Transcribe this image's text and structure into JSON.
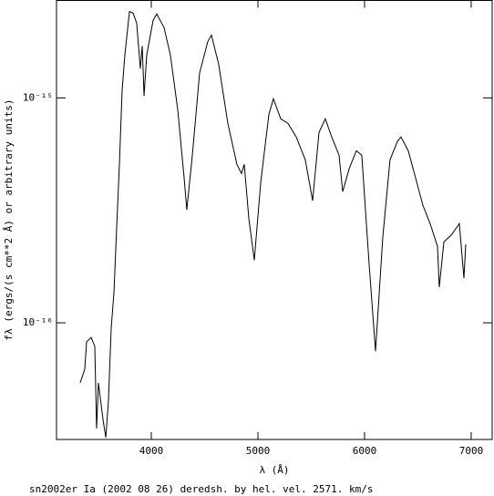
{
  "chart_data": {
    "type": "line",
    "title": "sn2002er Ia (2002 08 26) deredsh. by hel. vel.  2571. km/s",
    "xlabel": "λ (Å)",
    "ylabel": "fλ (ergs/(s cm**2 Å) or arbitrary units)",
    "ylog": true,
    "color": "#000000",
    "xlim": [
      3111,
      7197
    ],
    "xticks": [
      4000,
      5000,
      6000,
      7000
    ],
    "ylim": [
      3.03e-17,
      2.71e-15
    ],
    "yticks": [
      {
        "value": 1e-16,
        "label": "10⁻¹⁶"
      },
      {
        "value": 1e-15,
        "label": "10⁻¹⁵"
      }
    ],
    "x": [
      3333,
      3376,
      3393,
      3436,
      3470,
      3487,
      3504,
      3547,
      3573,
      3598,
      3624,
      3650,
      3675,
      3701,
      3726,
      3752,
      3795,
      3829,
      3863,
      3897,
      3915,
      3932,
      3957,
      4017,
      4051,
      4120,
      4179,
      4248,
      4308,
      4333,
      4385,
      4453,
      4530,
      4564,
      4632,
      4718,
      4803,
      4846,
      4872,
      4915,
      4966,
      5026,
      5103,
      5145,
      5214,
      5282,
      5359,
      5444,
      5513,
      5573,
      5632,
      5692,
      5761,
      5795,
      5855,
      5923,
      5974,
      6043,
      6103,
      6171,
      6239,
      6308,
      6342,
      6410,
      6479,
      6547,
      6615,
      6684,
      6701,
      6744,
      6812,
      6889,
      6932,
      6949
    ],
    "values": [
      5.41e-17,
      6.22e-17,
      8.22e-17,
      8.61e-17,
      7.85e-17,
      3.39e-17,
      5.41e-17,
      3.72e-17,
      3.09e-17,
      4.49e-17,
      9.46e-17,
      1.37e-16,
      2.64e-16,
      5.06e-16,
      1.07e-15,
      1.55e-15,
      2.42e-15,
      2.38e-15,
      2.15e-15,
      1.35e-15,
      1.7e-15,
      1.02e-15,
      1.55e-15,
      2.21e-15,
      2.36e-15,
      2.05e-15,
      1.55e-15,
      8.86e-16,
      4.4e-16,
      3.18e-16,
      5.56e-16,
      1.29e-15,
      1.78e-15,
      1.9e-15,
      1.41e-15,
      7.7e-16,
      5.06e-16,
      4.61e-16,
      5.06e-16,
      2.9e-16,
      1.9e-16,
      4.2e-16,
      8.45e-16,
      9.91e-16,
      8.07e-16,
      7.7e-16,
      6.7e-16,
      5.31e-16,
      3.49e-16,
      7.02e-16,
      8.07e-16,
      6.7e-16,
      5.56e-16,
      3.83e-16,
      4.83e-16,
      5.82e-16,
      5.56e-16,
      1.82e-16,
      7.48e-17,
      2.4e-16,
      5.31e-16,
      6.4e-16,
      6.7e-16,
      5.82e-16,
      4.4e-16,
      3.33e-16,
      2.76e-16,
      2.19e-16,
      1.44e-16,
      2.29e-16,
      2.45e-16,
      2.76e-16,
      1.58e-16,
      2.23e-16
    ]
  }
}
